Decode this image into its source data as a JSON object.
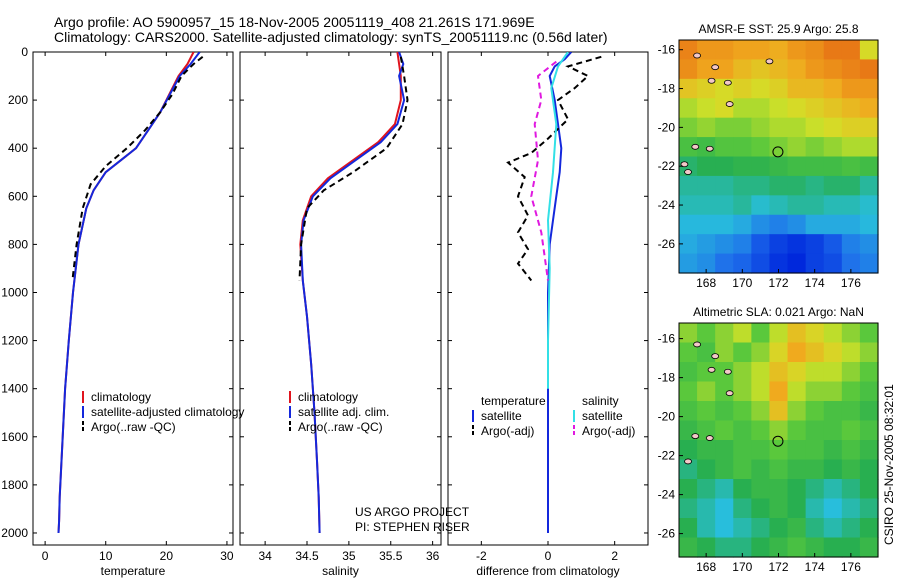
{
  "header": {
    "line1": "Argo profile: AO 5900957_15 18-Nov-2005 20051119_408 21.261S 171.969E",
    "line2": "Climatology: CARS2000. Satellite-adjusted climatology: synTS_20051119.nc (0.56d later)"
  },
  "credits": {
    "project": "US ARGO PROJECT",
    "pi": "PI: STEPHEN RISER",
    "timestamp": "CSIRO 25-Nov-2005 08:32:01"
  },
  "colors": {
    "climatology": "#e0141e",
    "satellite": "#1428dc",
    "argo": "#000000",
    "salinity_satellite": "#33e0e6",
    "salinity_argo": "#e019e0"
  },
  "chart_data": [
    {
      "id": "temperature",
      "type": "line",
      "xlabel": "temperature",
      "ylabel": "",
      "xlim": [
        -2,
        31
      ],
      "ylim": [
        2050,
        0
      ],
      "xticks": [
        0,
        10,
        20,
        30
      ],
      "yticks": [
        0,
        200,
        400,
        600,
        800,
        1000,
        1200,
        1400,
        1600,
        1800,
        2000
      ],
      "legend": [
        {
          "label": "climatology",
          "series": "climatology"
        },
        {
          "label": "satellite-adjusted climatology",
          "series": "satellite"
        },
        {
          "label": "Argo(..raw -QC)",
          "series": "argo"
        }
      ],
      "series": [
        {
          "name": "climatology",
          "color": "#e0141e",
          "dash": "",
          "x": [
            24.5,
            23.5,
            22.0,
            20.5,
            19.0,
            17.0,
            15.0,
            12.5,
            10.0,
            8.0,
            6.8,
            5.5,
            4.6,
            3.9,
            3.3,
            2.9,
            2.6,
            2.4,
            2.3,
            2.2
          ],
          "y": [
            0,
            50,
            100,
            175,
            250,
            325,
            400,
            450,
            500,
            575,
            650,
            800,
            1000,
            1200,
            1400,
            1600,
            1750,
            1850,
            1950,
            2000
          ]
        },
        {
          "name": "satellite",
          "color": "#1428dc",
          "dash": "",
          "x": [
            25.5,
            24.0,
            22.2,
            20.6,
            19.0,
            17.0,
            15.0,
            12.5,
            10.0,
            8.0,
            6.8,
            5.5,
            4.6,
            3.9,
            3.3,
            2.9,
            2.6,
            2.4,
            2.3,
            2.2
          ],
          "y": [
            0,
            50,
            100,
            175,
            250,
            325,
            400,
            450,
            500,
            575,
            650,
            800,
            1000,
            1200,
            1400,
            1600,
            1750,
            1850,
            1950,
            2000
          ]
        },
        {
          "name": "argo",
          "color": "#000000",
          "dash": "6,4",
          "x": [
            26.0,
            24.5,
            22.5,
            21.0,
            19.0,
            16.5,
            13.5,
            10.0,
            7.5,
            6.2,
            5.2,
            4.5
          ],
          "y": [
            20,
            50,
            100,
            175,
            250,
            325,
            400,
            475,
            550,
            650,
            800,
            950
          ]
        }
      ]
    },
    {
      "id": "salinity",
      "type": "line",
      "xlabel": "salinity",
      "ylabel": "",
      "xlim": [
        33.7,
        36.1
      ],
      "ylim": [
        2050,
        0
      ],
      "xticks": [
        34,
        34.5,
        35,
        35.5,
        36
      ],
      "xticklabels": [
        "34",
        "34.5",
        "35",
        "35.5",
        "36"
      ],
      "legend": [
        {
          "label": "climatology",
          "series": "climatology"
        },
        {
          "label": "satellite adj. clim.",
          "series": "satellite"
        },
        {
          "label": "Argo(..raw -QC)",
          "series": "argo"
        }
      ],
      "series": [
        {
          "name": "climatology",
          "color": "#e0141e",
          "dash": "",
          "x": [
            35.58,
            35.6,
            35.62,
            35.62,
            35.55,
            35.35,
            35.05,
            34.75,
            34.55,
            34.45,
            34.42,
            34.45,
            34.5,
            34.55,
            34.59,
            34.62,
            34.64,
            34.65
          ],
          "y": [
            0,
            50,
            100,
            200,
            300,
            375,
            450,
            525,
            600,
            700,
            800,
            950,
            1100,
            1300,
            1500,
            1700,
            1850,
            2000
          ]
        },
        {
          "name": "satellite",
          "color": "#1428dc",
          "dash": "",
          "x": [
            35.6,
            35.65,
            35.6,
            35.66,
            35.58,
            35.38,
            35.08,
            34.78,
            34.57,
            34.46,
            34.43,
            34.45,
            34.5,
            34.55,
            34.59,
            34.62,
            34.64,
            34.65
          ],
          "y": [
            0,
            50,
            100,
            200,
            300,
            375,
            450,
            525,
            600,
            700,
            800,
            950,
            1100,
            1300,
            1500,
            1700,
            1850,
            2000
          ]
        },
        {
          "name": "argo",
          "color": "#000000",
          "dash": "6,4",
          "x": [
            35.62,
            35.66,
            35.7,
            35.64,
            35.45,
            35.05,
            34.7,
            34.5,
            34.43,
            34.41
          ],
          "y": [
            20,
            100,
            200,
            300,
            400,
            500,
            575,
            650,
            800,
            950
          ]
        }
      ],
      "annotations": [
        "US ARGO PROJECT",
        "PI: STEPHEN RISER"
      ]
    },
    {
      "id": "difference",
      "type": "line",
      "xlabel": "difference from climatology",
      "ylabel": "",
      "xlim": [
        -3,
        3
      ],
      "ylim": [
        2050,
        0
      ],
      "xticks": [
        -2,
        0,
        2
      ],
      "legend": [
        {
          "label": "temperature",
          "series": ""
        },
        {
          "label": "satellite",
          "series": "temp_satellite"
        },
        {
          "label": "Argo(-adj)",
          "series": "temp_argo"
        },
        {
          "label": "salinity",
          "series": ""
        },
        {
          "label": "satellite",
          "series": "sal_satellite"
        },
        {
          "label": "Argo(-adj)",
          "series": "sal_argo"
        }
      ],
      "series": [
        {
          "name": "temp_satellite",
          "color": "#1428dc",
          "dash": "",
          "x": [
            0.7,
            0.5,
            0.2,
            0.05,
            0.2,
            0.3,
            0.4,
            0.35,
            0.25,
            0.15,
            0.05,
            0.0,
            0.0
          ],
          "y": [
            0,
            30,
            60,
            100,
            200,
            300,
            400,
            500,
            600,
            700,
            800,
            1000,
            2000
          ]
        },
        {
          "name": "temp_argo",
          "color": "#000000",
          "dash": "6,4",
          "x": [
            1.6,
            0.6,
            1.2,
            0.8,
            0.3,
            0.6,
            0.0,
            -0.5,
            -1.2,
            -0.7,
            -0.9,
            -0.6,
            -0.9,
            -0.6,
            -0.9,
            -0.5
          ],
          "y": [
            20,
            60,
            100,
            150,
            200,
            280,
            360,
            420,
            460,
            520,
            600,
            680,
            750,
            820,
            880,
            950
          ]
        },
        {
          "name": "sal_satellite",
          "color": "#33e0e6",
          "dash": "",
          "x": [
            0.6,
            0.3,
            0.1,
            0.25,
            0.15,
            0.0,
            0.05,
            0.0,
            0.0
          ],
          "y": [
            0,
            60,
            150,
            300,
            500,
            700,
            900,
            1200,
            1400
          ]
        },
        {
          "name": "sal_argo",
          "color": "#e019e0",
          "dash": "6,4",
          "x": [
            0.25,
            -0.3,
            -0.2,
            -0.4,
            -0.3,
            -0.5,
            -0.2,
            0.0
          ],
          "y": [
            40,
            100,
            200,
            300,
            450,
            600,
            750,
            950
          ]
        }
      ]
    },
    {
      "id": "amsr-sst-map",
      "type": "heatmap",
      "title": "AMSR-E SST: 25.9 Argo: 25.8",
      "xlim": [
        166.5,
        177.5
      ],
      "ylim": [
        -27.5,
        -15.5
      ],
      "xticks": [
        168,
        170,
        172,
        174,
        176
      ],
      "yticks": [
        -16,
        -18,
        -20,
        -22,
        -24,
        -26
      ],
      "marker": {
        "lon": 171.969,
        "lat": -21.261
      },
      "islands": [
        {
          "lon": 167.5,
          "lat": -16.3
        },
        {
          "lon": 168.5,
          "lat": -16.9
        },
        {
          "lon": 169.2,
          "lat": -17.7
        },
        {
          "lon": 168.3,
          "lat": -17.6
        },
        {
          "lon": 169.3,
          "lat": -18.8
        },
        {
          "lon": 171.5,
          "lat": -16.6
        },
        {
          "lon": 168.2,
          "lat": -21.1
        },
        {
          "lon": 167.4,
          "lat": -21.0
        },
        {
          "lon": 167.0,
          "lat": -22.3
        },
        {
          "lon": 166.8,
          "lat": -21.9
        }
      ],
      "grid": [
        [
          26.8,
          26.6,
          26.6,
          26.5,
          26.5,
          26.4,
          26.6,
          26.7,
          26.9,
          26.9,
          26.0
        ],
        [
          26.7,
          26.5,
          26.5,
          26.3,
          26.2,
          26.3,
          26.4,
          26.6,
          26.7,
          26.8,
          26.9
        ],
        [
          26.2,
          26.1,
          26.0,
          26.1,
          26.0,
          26.1,
          26.3,
          26.3,
          26.4,
          26.6,
          26.6
        ],
        [
          25.8,
          25.9,
          26.0,
          25.8,
          25.8,
          25.9,
          26.0,
          26.1,
          26.2,
          26.3,
          26.4
        ],
        [
          25.6,
          25.7,
          25.6,
          25.6,
          25.7,
          25.8,
          25.8,
          25.9,
          26.0,
          26.1,
          26.1
        ],
        [
          25.3,
          25.2,
          25.4,
          25.4,
          25.5,
          25.6,
          25.7,
          25.6,
          25.7,
          25.8,
          25.8
        ],
        [
          24.8,
          24.9,
          24.9,
          25.0,
          25.0,
          25.1,
          25.2,
          25.2,
          25.2,
          25.3,
          25.2
        ],
        [
          24.6,
          24.6,
          24.6,
          24.7,
          24.7,
          24.8,
          24.8,
          24.7,
          24.8,
          24.8,
          24.6
        ],
        [
          24.5,
          24.5,
          24.5,
          24.6,
          24.4,
          24.5,
          24.6,
          24.6,
          24.5,
          24.5,
          24.4
        ],
        [
          24.3,
          24.3,
          24.3,
          24.2,
          24.0,
          23.9,
          24.0,
          24.2,
          24.2,
          24.2,
          24.3
        ],
        [
          24.2,
          24.1,
          24.0,
          23.9,
          23.6,
          23.4,
          23.3,
          23.4,
          23.6,
          23.9,
          24.0
        ],
        [
          24.1,
          24.0,
          23.8,
          23.7,
          23.5,
          23.3,
          23.2,
          23.4,
          23.5,
          23.8,
          23.9
        ]
      ],
      "colorscale": {
        "min": 23.2,
        "max": 27.0
      }
    },
    {
      "id": "altimetric-sla-map",
      "type": "heatmap",
      "title": "Altimetric SLA: 0.021 Argo: NaN",
      "xlim": [
        166.5,
        177.5
      ],
      "ylim": [
        -27.2,
        -15.2
      ],
      "xticks": [
        168,
        170,
        172,
        174,
        176
      ],
      "yticks": [
        -16,
        -18,
        -20,
        -22,
        -24,
        -26
      ],
      "marker": {
        "lon": 171.969,
        "lat": -21.261
      },
      "islands": [
        {
          "lon": 167.5,
          "lat": -16.3
        },
        {
          "lon": 168.5,
          "lat": -16.9
        },
        {
          "lon": 169.2,
          "lat": -17.7
        },
        {
          "lon": 168.3,
          "lat": -17.6
        },
        {
          "lon": 169.3,
          "lat": -18.8
        },
        {
          "lon": 168.2,
          "lat": -21.1
        },
        {
          "lon": 167.4,
          "lat": -21.0
        },
        {
          "lon": 167.0,
          "lat": -22.3
        }
      ],
      "grid": [
        [
          0.05,
          0.04,
          0.05,
          0.06,
          0.04,
          0.06,
          0.08,
          0.07,
          0.06,
          0.05,
          0.04
        ],
        [
          0.04,
          0.03,
          0.05,
          0.04,
          0.05,
          0.07,
          0.09,
          0.08,
          0.07,
          0.06,
          0.05
        ],
        [
          0.03,
          0.04,
          0.04,
          0.05,
          0.06,
          0.08,
          0.07,
          0.06,
          0.06,
          0.05,
          0.04
        ],
        [
          0.04,
          0.05,
          0.04,
          0.05,
          0.06,
          0.09,
          0.06,
          0.05,
          0.05,
          0.04,
          0.03
        ],
        [
          0.03,
          0.04,
          0.03,
          0.04,
          0.05,
          0.08,
          0.05,
          0.04,
          0.03,
          0.03,
          0.02
        ],
        [
          0.02,
          0.03,
          0.04,
          0.03,
          0.04,
          0.05,
          0.04,
          0.03,
          0.03,
          0.04,
          0.03
        ],
        [
          0.01,
          0.02,
          0.02,
          0.03,
          0.03,
          0.04,
          0.03,
          0.03,
          0.02,
          0.03,
          0.02
        ],
        [
          0.0,
          0.01,
          0.02,
          0.03,
          0.02,
          0.03,
          0.02,
          0.02,
          0.01,
          0.02,
          0.01
        ],
        [
          0.01,
          0.0,
          -0.01,
          0.01,
          0.02,
          0.02,
          0.01,
          0.0,
          -0.01,
          0.0,
          0.01
        ],
        [
          0.0,
          -0.01,
          -0.02,
          0.0,
          0.01,
          0.02,
          0.01,
          -0.01,
          -0.02,
          -0.01,
          0.0
        ],
        [
          0.01,
          -0.01,
          -0.02,
          -0.01,
          0.0,
          0.01,
          0.02,
          0.0,
          -0.01,
          0.0,
          0.01
        ],
        [
          0.02,
          0.01,
          0.0,
          0.0,
          0.01,
          0.02,
          0.03,
          0.02,
          0.01,
          0.01,
          0.02
        ]
      ],
      "colorscale": {
        "min": -0.08,
        "max": 0.12
      }
    }
  ]
}
